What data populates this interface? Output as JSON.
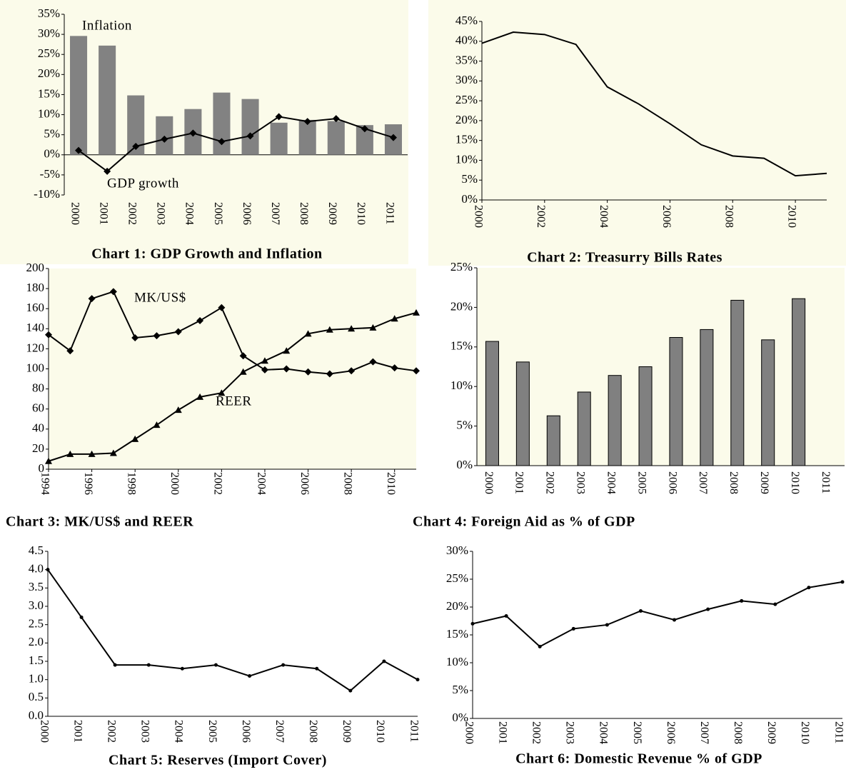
{
  "chart_data": [
    {
      "type": "bar",
      "title": "Chart 1: GDP Growth and Inflation",
      "categories": [
        "2000",
        "2001",
        "2002",
        "2003",
        "2004",
        "2005",
        "2006",
        "2007",
        "2008",
        "2009",
        "2010",
        "2011"
      ],
      "series": [
        {
          "name": "Inflation",
          "type": "bar",
          "color": "#828282",
          "values": [
            29.6,
            27.2,
            14.8,
            9.6,
            11.4,
            15.5,
            13.9,
            8.0,
            8.7,
            8.4,
            7.4,
            7.6
          ]
        },
        {
          "name": "GDP growth",
          "type": "line",
          "color": "#000000",
          "marker": "diamond",
          "values": [
            1.1,
            -4.1,
            2.1,
            3.9,
            5.4,
            3.3,
            4.7,
            9.5,
            8.3,
            9.0,
            6.5,
            4.3
          ]
        }
      ],
      "ylim": [
        -10,
        35
      ],
      "yticks": [
        {
          "value": -10,
          "label": "-10%"
        },
        {
          "value": -5,
          "label": "-5%"
        },
        {
          "value": 0,
          "label": "0%"
        },
        {
          "value": 5,
          "label": "5%"
        },
        {
          "value": 10,
          "label": "10%"
        },
        {
          "value": 15,
          "label": "15%"
        },
        {
          "value": 20,
          "label": "20%"
        },
        {
          "value": 25,
          "label": "25%"
        },
        {
          "value": 30,
          "label": "30%"
        },
        {
          "value": 35,
          "label": "35%"
        }
      ]
    },
    {
      "type": "line",
      "title": "Chart 2: Treasurry Bills Rates",
      "x": [
        2000,
        2001,
        2002,
        2003,
        2004,
        2005,
        2006,
        2007,
        2008,
        2009,
        2010,
        2011
      ],
      "series": [
        {
          "color": "#000000",
          "marker": "none",
          "values": [
            39.5,
            42.3,
            41.7,
            39.2,
            28.5,
            24.2,
            19.2,
            13.9,
            11.1,
            10.5,
            6.1,
            6.7
          ]
        }
      ],
      "xlim": [
        2000,
        2011
      ],
      "xticks": [
        2000,
        2002,
        2004,
        2006,
        2008,
        2010
      ],
      "ylim": [
        0,
        45
      ],
      "yticks": [
        {
          "value": 0,
          "label": "0%"
        },
        {
          "value": 5,
          "label": "5%"
        },
        {
          "value": 10,
          "label": "10%"
        },
        {
          "value": 15,
          "label": "15%"
        },
        {
          "value": 20,
          "label": "20%"
        },
        {
          "value": 25,
          "label": "25%"
        },
        {
          "value": 30,
          "label": "30%"
        },
        {
          "value": 35,
          "label": "35%"
        },
        {
          "value": 40,
          "label": "40%"
        },
        {
          "value": 45,
          "label": "45%"
        }
      ]
    },
    {
      "type": "line",
      "title": "Chart 3: MK/US$ and REER",
      "x": [
        1994,
        1995,
        1996,
        1997,
        1998,
        1999,
        2000,
        2001,
        2002,
        2003,
        2004,
        2005,
        2006,
        2007,
        2008,
        2009,
        2010,
        2011
      ],
      "series": [
        {
          "name": "MK/US$",
          "color": "#000000",
          "marker": "diamond",
          "values": [
            134,
            118,
            170,
            177,
            131,
            133,
            137,
            148,
            161,
            113,
            99,
            100,
            97,
            95,
            98,
            107,
            101,
            98
          ]
        },
        {
          "name": "REER",
          "color": "#000000",
          "marker": "triangle",
          "values": [
            8,
            15,
            15,
            16,
            30,
            44,
            59,
            72,
            76,
            97,
            108,
            118,
            135,
            139,
            140,
            141,
            150,
            156
          ]
        }
      ],
      "xlim": [
        1994,
        2011
      ],
      "xticks": [
        1994,
        1996,
        1998,
        2000,
        2002,
        2004,
        2006,
        2008,
        2010
      ],
      "ylim": [
        0,
        200
      ],
      "yticks": [
        0,
        20,
        40,
        60,
        80,
        100,
        120,
        140,
        160,
        180,
        200
      ]
    },
    {
      "type": "bar",
      "title": "Chart 4: Foreign Aid as % of GDP",
      "categories": [
        "2000",
        "2001",
        "2002",
        "2003",
        "2004",
        "2005",
        "2006",
        "2007",
        "2008",
        "2009",
        "2010",
        "2011"
      ],
      "series": [
        {
          "type": "bar",
          "color": "#808080",
          "values": [
            15.7,
            13.1,
            6.3,
            9.3,
            11.4,
            12.5,
            16.2,
            17.2,
            20.9,
            15.9,
            21.1,
            null
          ]
        }
      ],
      "ylim": [
        0,
        25
      ],
      "yticks": [
        {
          "value": 0,
          "label": "0%"
        },
        {
          "value": 5,
          "label": "5%"
        },
        {
          "value": 10,
          "label": "10%"
        },
        {
          "value": 15,
          "label": "15%"
        },
        {
          "value": 20,
          "label": "20%"
        },
        {
          "value": 25,
          "label": "25%"
        }
      ]
    },
    {
      "type": "line",
      "title": "Chart 5: Reserves (Import Cover)",
      "categories": [
        "2000",
        "2001",
        "2002",
        "2003",
        "2004",
        "2005",
        "2006",
        "2007",
        "2008",
        "2009",
        "2010",
        "2011"
      ],
      "series": [
        {
          "color": "#000000",
          "marker": "dot",
          "values": [
            4.0,
            2.7,
            1.4,
            1.4,
            1.3,
            1.4,
            1.1,
            1.4,
            1.3,
            0.7,
            1.5,
            1.0
          ]
        }
      ],
      "ylim": [
        0,
        4.5
      ],
      "yticks": [
        {
          "value": 0,
          "label": "0.0"
        },
        0.5,
        {
          "value": 1,
          "label": "1.0"
        },
        1.5,
        {
          "value": 2,
          "label": "2.0"
        },
        2.5,
        {
          "value": 3,
          "label": "3.0"
        },
        3.5,
        {
          "value": 4,
          "label": "4.0"
        },
        4.5
      ]
    },
    {
      "type": "line",
      "title": "Chart 6: Domestic Revenue % of GDP",
      "categories": [
        "2000",
        "2001",
        "2002",
        "2003",
        "2004",
        "2005",
        "2006",
        "2007",
        "2008",
        "2009",
        "2010",
        "2011"
      ],
      "series": [
        {
          "color": "#000000",
          "marker": "dot",
          "values": [
            17.0,
            18.4,
            12.9,
            16.1,
            16.8,
            19.3,
            17.7,
            19.6,
            21.1,
            20.5,
            23.5,
            24.5
          ]
        }
      ],
      "ylim": [
        0,
        30
      ],
      "yticks": [
        {
          "value": 0,
          "label": "0%"
        },
        {
          "value": 5,
          "label": "5%"
        },
        {
          "value": 10,
          "label": "10%"
        },
        {
          "value": 15,
          "label": "15%"
        },
        {
          "value": 20,
          "label": "20%"
        },
        {
          "value": 25,
          "label": "25%"
        },
        {
          "value": 30,
          "label": "30%"
        }
      ]
    }
  ]
}
